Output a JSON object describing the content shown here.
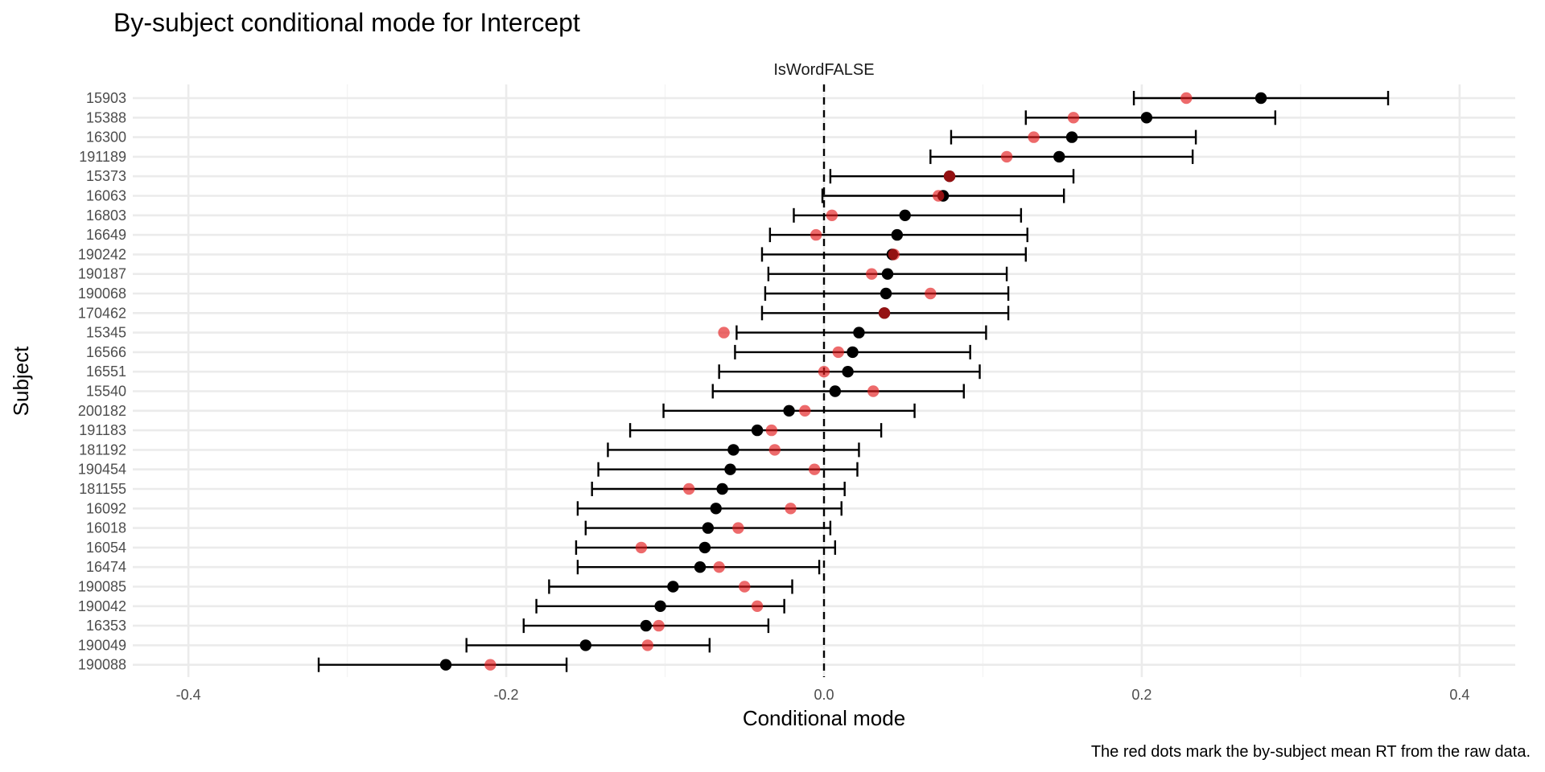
{
  "chart_data": {
    "type": "scatter",
    "title": "By-subject conditional mode for Intercept",
    "facet_label": "IsWordFALSE",
    "xlabel": "Conditional mode",
    "ylabel": "Subject",
    "caption": "The red dots mark the by-subject mean RT from the raw data.",
    "xlim": [
      -0.435,
      0.435
    ],
    "x_ticks": [
      -0.4,
      -0.2,
      0.0,
      0.2,
      0.4
    ],
    "x_tick_labels": [
      "-0.4",
      "-0.2",
      "0.0",
      "0.2",
      "0.4"
    ],
    "reference_line": 0.0,
    "grid": true,
    "colors": {
      "conditional_mode": "#000000",
      "raw_mean": "#e41a1c",
      "grid": "#ebebeb"
    },
    "subjects": [
      {
        "subject": "15903",
        "mode": 0.275,
        "lower": 0.195,
        "upper": 0.355,
        "raw_mean": 0.228
      },
      {
        "subject": "15388",
        "mode": 0.203,
        "lower": 0.127,
        "upper": 0.284,
        "raw_mean": 0.157
      },
      {
        "subject": "16300",
        "mode": 0.156,
        "lower": 0.08,
        "upper": 0.234,
        "raw_mean": 0.132
      },
      {
        "subject": "191189",
        "mode": 0.148,
        "lower": 0.067,
        "upper": 0.232,
        "raw_mean": 0.115
      },
      {
        "subject": "15373",
        "mode": 0.079,
        "lower": 0.004,
        "upper": 0.157,
        "raw_mean": 0.079
      },
      {
        "subject": "16063",
        "mode": 0.075,
        "lower": -0.001,
        "upper": 0.151,
        "raw_mean": 0.072
      },
      {
        "subject": "16803",
        "mode": 0.051,
        "lower": -0.019,
        "upper": 0.124,
        "raw_mean": 0.005
      },
      {
        "subject": "16649",
        "mode": 0.046,
        "lower": -0.034,
        "upper": 0.128,
        "raw_mean": -0.005
      },
      {
        "subject": "190242",
        "mode": 0.043,
        "lower": -0.039,
        "upper": 0.127,
        "raw_mean": 0.044
      },
      {
        "subject": "190187",
        "mode": 0.04,
        "lower": -0.035,
        "upper": 0.115,
        "raw_mean": 0.03
      },
      {
        "subject": "190068",
        "mode": 0.039,
        "lower": -0.037,
        "upper": 0.116,
        "raw_mean": 0.067
      },
      {
        "subject": "170462",
        "mode": 0.038,
        "lower": -0.039,
        "upper": 0.116,
        "raw_mean": 0.038
      },
      {
        "subject": "15345",
        "mode": 0.022,
        "lower": -0.055,
        "upper": 0.102,
        "raw_mean": -0.063
      },
      {
        "subject": "16566",
        "mode": 0.018,
        "lower": -0.056,
        "upper": 0.092,
        "raw_mean": 0.009
      },
      {
        "subject": "16551",
        "mode": 0.015,
        "lower": -0.066,
        "upper": 0.098,
        "raw_mean": 0.0
      },
      {
        "subject": "15540",
        "mode": 0.007,
        "lower": -0.07,
        "upper": 0.088,
        "raw_mean": 0.031
      },
      {
        "subject": "200182",
        "mode": -0.022,
        "lower": -0.101,
        "upper": 0.057,
        "raw_mean": -0.012
      },
      {
        "subject": "191183",
        "mode": -0.042,
        "lower": -0.122,
        "upper": 0.036,
        "raw_mean": -0.033
      },
      {
        "subject": "181192",
        "mode": -0.057,
        "lower": -0.136,
        "upper": 0.022,
        "raw_mean": -0.031
      },
      {
        "subject": "190454",
        "mode": -0.059,
        "lower": -0.142,
        "upper": 0.021,
        "raw_mean": -0.006
      },
      {
        "subject": "181155",
        "mode": -0.064,
        "lower": -0.146,
        "upper": 0.013,
        "raw_mean": -0.085
      },
      {
        "subject": "16092",
        "mode": -0.068,
        "lower": -0.155,
        "upper": 0.011,
        "raw_mean": -0.021
      },
      {
        "subject": "16018",
        "mode": -0.073,
        "lower": -0.15,
        "upper": 0.004,
        "raw_mean": -0.054
      },
      {
        "subject": "16054",
        "mode": -0.075,
        "lower": -0.156,
        "upper": 0.007,
        "raw_mean": -0.115
      },
      {
        "subject": "16474",
        "mode": -0.078,
        "lower": -0.155,
        "upper": -0.003,
        "raw_mean": -0.066
      },
      {
        "subject": "190085",
        "mode": -0.095,
        "lower": -0.173,
        "upper": -0.02,
        "raw_mean": -0.05
      },
      {
        "subject": "190042",
        "mode": -0.103,
        "lower": -0.181,
        "upper": -0.025,
        "raw_mean": -0.042
      },
      {
        "subject": "16353",
        "mode": -0.112,
        "lower": -0.189,
        "upper": -0.035,
        "raw_mean": -0.104
      },
      {
        "subject": "190049",
        "mode": -0.15,
        "lower": -0.225,
        "upper": -0.072,
        "raw_mean": -0.111
      },
      {
        "subject": "190088",
        "mode": -0.238,
        "lower": -0.318,
        "upper": -0.162,
        "raw_mean": -0.21
      }
    ]
  }
}
